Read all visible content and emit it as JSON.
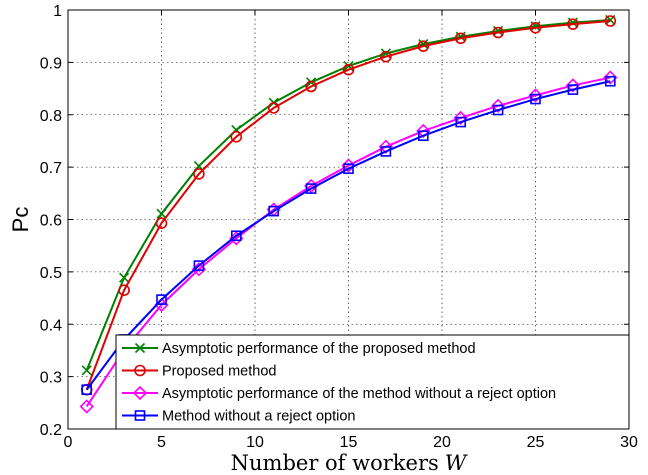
{
  "chart_data": {
    "type": "line",
    "xlabel": "Number of workers",
    "xlabel_var": "W",
    "ylabel": "Pc",
    "xlim": [
      0,
      30
    ],
    "ylim": [
      0.2,
      1
    ],
    "xticks": [
      0,
      5,
      10,
      15,
      20,
      25,
      30
    ],
    "yticks": [
      0.2,
      0.3,
      0.4,
      0.5,
      0.6,
      0.7,
      0.8,
      0.9,
      1
    ],
    "xtick_labels": [
      "0",
      "5",
      "10",
      "15",
      "20",
      "25",
      "30"
    ],
    "ytick_labels": [
      "0.2",
      "0.3",
      "0.4",
      "0.5",
      "0.6",
      "0.7",
      "0.8",
      "0.9",
      "1"
    ],
    "grid": true,
    "legend_position": "bottom-right",
    "x": [
      1,
      3,
      5,
      7,
      9,
      11,
      13,
      15,
      17,
      19,
      21,
      23,
      25,
      27,
      29
    ],
    "series": [
      {
        "name": "Asymptotic performance of the proposed method",
        "color": "#008000",
        "marker": "x",
        "values": [
          0.312,
          0.489,
          0.611,
          0.702,
          0.771,
          0.823,
          0.862,
          0.893,
          0.917,
          0.935,
          0.949,
          0.96,
          0.969,
          0.976,
          0.981
        ]
      },
      {
        "name": "Proposed method",
        "color": "#e00000",
        "marker": "circle",
        "values": [
          0.275,
          0.465,
          0.593,
          0.687,
          0.758,
          0.813,
          0.854,
          0.886,
          0.911,
          0.931,
          0.946,
          0.957,
          0.966,
          0.973,
          0.979
        ]
      },
      {
        "name": "Asymptotic performance of the method without a reject option",
        "color": "#ff00ff",
        "marker": "diamond",
        "values": [
          0.243,
          0.351,
          0.437,
          0.505,
          0.564,
          0.619,
          0.664,
          0.703,
          0.739,
          0.769,
          0.794,
          0.817,
          0.837,
          0.856,
          0.871
        ]
      },
      {
        "name": "Method without a reject option",
        "color": "#0000ff",
        "marker": "square",
        "values": [
          0.275,
          0.371,
          0.447,
          0.512,
          0.569,
          0.616,
          0.659,
          0.697,
          0.73,
          0.76,
          0.786,
          0.809,
          0.83,
          0.848,
          0.864
        ]
      }
    ]
  }
}
